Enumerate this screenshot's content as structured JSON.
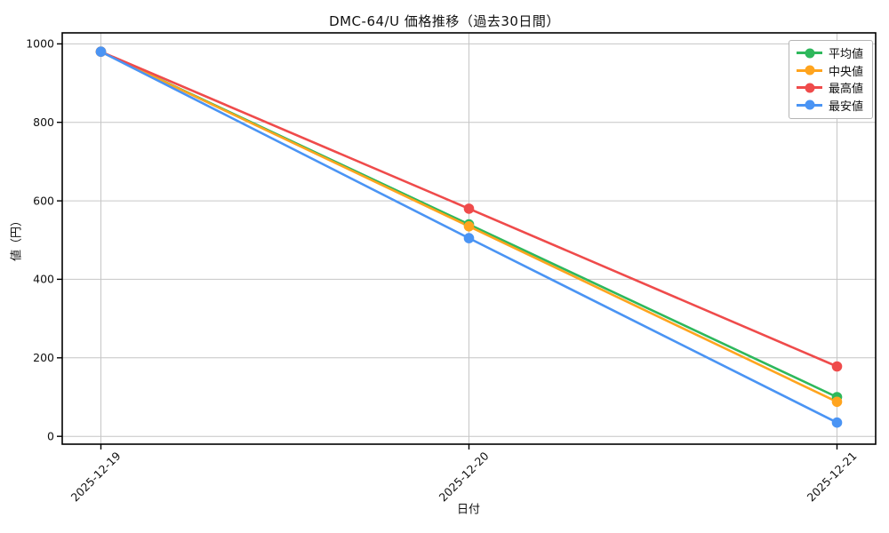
{
  "chart_data": {
    "type": "line",
    "title": "DMC-64/U 価格推移（過去30日間）",
    "xlabel": "日付",
    "ylabel": "値（円）",
    "x": [
      "2025-12-19",
      "2025-12-20",
      "2025-12-21"
    ],
    "series": [
      {
        "name": "平均値",
        "color": "#2eb85c",
        "values": [
          980,
          540,
          100
        ]
      },
      {
        "name": "中央値",
        "color": "#ffa41e",
        "values": [
          980,
          535,
          88
        ]
      },
      {
        "name": "最高値",
        "color": "#ef4b4b",
        "values": [
          980,
          580,
          178
        ]
      },
      {
        "name": "最安値",
        "color": "#4a94f4",
        "values": [
          980,
          505,
          35
        ]
      }
    ],
    "ylim": [
      0,
      1000
    ],
    "yticks": [
      0,
      200,
      400,
      600,
      800,
      1000
    ],
    "grid": true,
    "legend_position": "upper right",
    "colors": {
      "grid": "#c6c6c6",
      "spine": "#000000",
      "text": "#111111",
      "background": "#ffffff"
    }
  }
}
